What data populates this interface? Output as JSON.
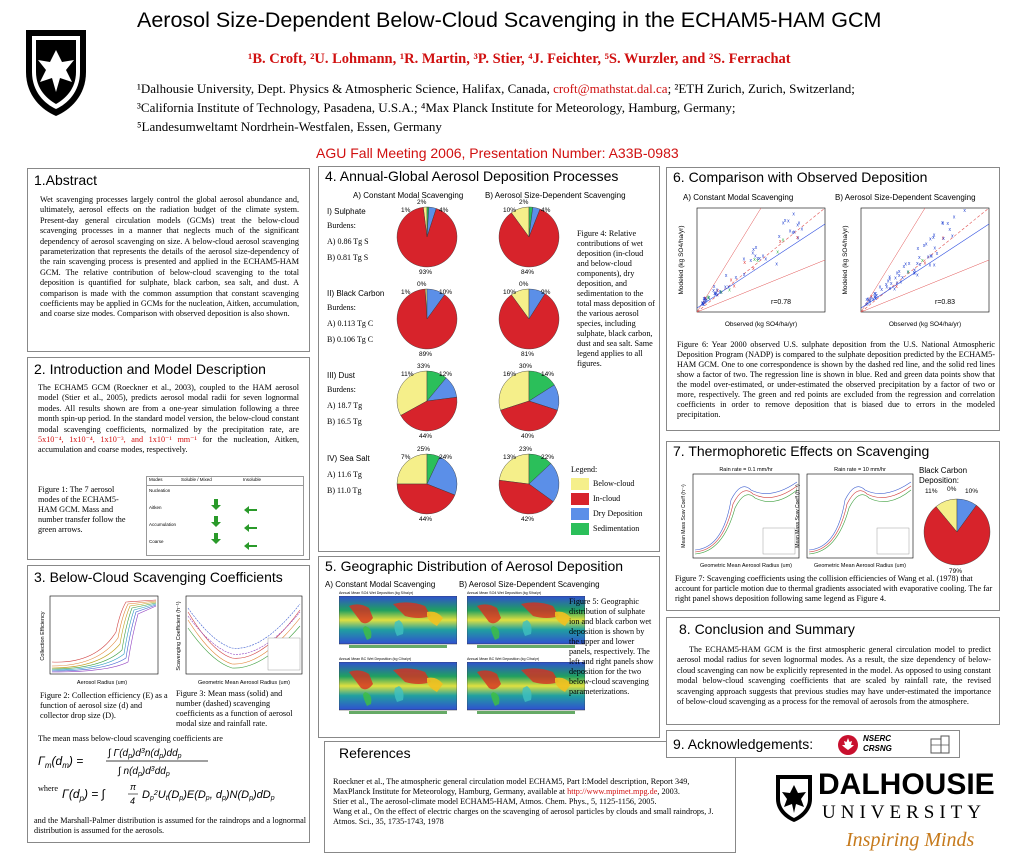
{
  "header": {
    "title": "Aerosol Size-Dependent Below-Cloud Scavenging in the ECHAM5-HAM GCM",
    "authors": "¹B. Croft, ²U. Lohmann, ¹R. Martin, ³P. Stier, ⁴J. Feichter, ⁵S. Wurzler, and ²S. Ferrachat",
    "affil1_pre": "¹Dalhousie University, Dept. Physics & Atmospheric Science, Halifax, Canada,",
    "affil1_email": "croft@mathstat.dal.ca",
    "affil1_post": "; ²ETH Zurich, Zurich, Switzerland;",
    "affil2": "³California Institute of Technology, Pasadena, U.S.A.; ⁴Max Planck Institute for Meteorology, Hamburg, Germany;",
    "affil3": "⁵Landesumweltamt Nordrhein-Westfalen, Essen, Germany",
    "meeting": "AGU Fall Meeting 2006, Presentation Number: A33B-0983"
  },
  "abstract": {
    "title": "1.Abstract",
    "text": "Wet scavenging processes largely control the global aerosol abundance and, ultimately, aerosol effects on the radiation budget of the climate system. Present-day general circulation models (GCMs) treat the below-cloud scavenging processes in a manner that neglects much of the significant dependency of aerosol scavenging on size. A below-cloud aerosol scavenging parameterization that represents the details of the aerosol size-dependency of the rain scavenging process is presented and applied in the ECHAM5-HAM GCM. The relative contribution of below-cloud scavenging to the total deposition is quantified for sulphate, black carbon, sea salt, and dust. A comparison is made with the common assumption that constant scavenging coefficients may be applied in GCMs for the nucleation, Aitken, accumulation, and coarse size modes. Comparison with observed deposition is also shown."
  },
  "intro": {
    "title": "2. Introduction and Model Description",
    "text_a": "The ECHAM5 GCM (Roeckner et al., 2003), coupled to the HAM aerosol model (Stier et al., 2005), predicts aerosol modal radii for seven lognormal modes. All results shown are from a one-year simulation following a three month spin-up period. In the standard model version, the below-cloud constant modal scavenging coefficients, normalized by the precipitation rate, are",
    "text_red": "5x10⁻⁴, 1x10⁻⁴, 1x10⁻³, and 1x10⁻¹ mm⁻¹",
    "text_b": "for the nucleation, Aitken, accumulation and coarse modes, respectively.",
    "fig1_caption_bold": "Figure 1:",
    "fig1_caption": "The 7 aerosol modes of the ECHAM5-HAM GCM. Mass and number transfer follow the green arrows.",
    "table_headers": [
      "Modes",
      "Soluble / Mixed",
      "Insoluble"
    ],
    "table_rows": [
      "Nucleation",
      "Aitken",
      "Accumulation",
      "Coarse"
    ]
  },
  "scav": {
    "title": "3. Below-Cloud Scavenging Coefficients",
    "fig2_bold": "Figure 2:",
    "fig2": "Collection efficiency (E) as a function of aerosol size (d) and collector drop size (D).",
    "fig3_bold": "Figure 3:",
    "fig3": "Mean mass (solid) and number (dashed) scavenging coefficients as a function of aerosol modal size and rainfall rate.",
    "eq_intro": "The mean mass below-cloud scavenging coefficients are",
    "where": "where",
    "closing": "and the Marshall-Palmer distribution is assumed for the raindrops and a lognormal distribution is assumed for the aerosols.",
    "fig2_xlabel": "Aerosol Radius (um)",
    "fig2_ylabel": "Collection Efficiency",
    "fig3_xlabel": "Geometric Mean Aerosol Radius (um)",
    "fig3_ylabel": "Scavenging Coefficient (h⁻¹)"
  },
  "annual": {
    "title": "4. Annual-Global Aerosol Deposition Processes",
    "colA": "A) Constant Modal Scavenging",
    "colB": "B) Aerosol Size-Dependent Scavenging",
    "species": [
      {
        "name": "I) Sulphate",
        "burden_label": "Burdens:",
        "a": "A) 0.86 Tg S",
        "b": "B) 0.81 Tg S"
      },
      {
        "name": "II) Black Carbon",
        "burden_label": "Burdens:",
        "a": "A) 0.113 Tg C",
        "b": "B) 0.106 Tg C"
      },
      {
        "name": "III) Dust",
        "burden_label": "Burdens:",
        "a": "A) 18.7 Tg",
        "b": "B) 16.5 Tg"
      },
      {
        "name": "IV) Sea Salt",
        "burden_label": "",
        "a": "A) 11.6 Tg",
        "b": "B) 11.0 Tg"
      }
    ],
    "pies": [
      {
        "A": [
          2,
          93,
          4,
          1
        ],
        "B": [
          10,
          84,
          4,
          2
        ]
      },
      {
        "A": [
          1,
          89,
          10,
          0
        ],
        "B": [
          10,
          81,
          9,
          0
        ]
      },
      {
        "A": [
          33,
          44,
          12,
          11
        ],
        "B": [
          30,
          40,
          14,
          16
        ]
      },
      {
        "A": [
          25,
          44,
          24,
          7
        ],
        "B": [
          23,
          42,
          22,
          13
        ]
      }
    ],
    "pie_labels": [
      {
        "A": [
          "2%",
          "93%",
          "4%",
          "1%"
        ],
        "B": [
          "2%",
          "84%",
          "4%",
          "10%"
        ]
      },
      {
        "A": [
          "0%",
          "89%",
          "10%",
          "1%"
        ],
        "B": [
          "0%",
          "81%",
          "9%",
          "10%"
        ]
      },
      {
        "A": [
          "33%",
          "44%",
          "12%",
          "11%"
        ],
        "B": [
          "30%",
          "40%",
          "14%",
          "16%"
        ]
      },
      {
        "A": [
          "25%",
          "44%",
          "24%",
          "7%"
        ],
        "B": [
          "23%",
          "42%",
          "22%",
          "13%"
        ]
      }
    ],
    "fig4_bold": "Figure 4:",
    "fig4": "Relative contributions of wet deposition (in-cloud and below-cloud components), dry deposition, and sedimentation to the total mass deposition of the various aerosol species, including sulphate, black carbon, dust and sea salt. Same legend applies to all figures.",
    "legend_title": "Legend:",
    "legend": [
      {
        "label": "Below-cloud",
        "color": "#f5ef8a"
      },
      {
        "label": "In-cloud",
        "color": "#d7232b"
      },
      {
        "label": "Dry Deposition",
        "color": "#5b8fe8"
      },
      {
        "label": "Sedimentation",
        "color": "#2bbf5a"
      }
    ]
  },
  "geo": {
    "title": "5. Geographic Distribution of Aerosol Deposition",
    "colA": "A) Constant Modal Scavenging",
    "colB": "B) Aerosol Size-Dependent Scavenging",
    "map_titles": [
      "Annual Mean SO4 Wet Deposition (kg S/ha/yr)",
      "Annual Mean SO4 Wet Deposition (kg S/ha/yr)",
      "Annual Mean BC Wet Deposition (kg C/ha/yr)",
      "Annual Mean BC Wet Deposition (kg C/ha/yr)"
    ],
    "fig5_bold": "Figure 5:",
    "fig5": "Geographic distribution of sulphate ion and black carbon wet deposition is shown by the upper and lower panels, respectively. The left and right panels show deposition for the two below-cloud scavenging parameterizations."
  },
  "comparison": {
    "title": "6. Comparison with Observed Deposition",
    "colA": "A)  Constant Modal Scavenging",
    "colB": "B)  Aerosol Size-Dependent Scavenging",
    "rA": "r=0.78",
    "rB": "r=0.83",
    "xlabel": "Observed (kg SO4/ha/yr)",
    "ylabel": "Modeled (kg SO4/ha/yr)",
    "fig6_bold": "Figure 6:",
    "fig6": "Year 2000 observed U.S. sulphate deposition from the U.S. National Atmospheric Deposition Program (NADP) is compared to the sulphate deposition predicted by the ECHAM5-HAM GCM. One to one correspondence is shown by the dashed red line, and the solid red lines show a factor of two. The regression line is shown in blue. Red and green data points show that the model over-estimated, or under-estimated the observed precipitation by a factor of two or more, respectively. The green and red points are excluded from the regression and correlation coefficients in order to remove deposition that is biased due to errors in the modeled precipitation."
  },
  "thermo": {
    "title": "7. Thermophoretic Effects on Scavenging",
    "plot1_title": "Rain rate = 0.1 mm/hr",
    "plot2_title": "Rain rate = 10 mm/hr",
    "xlabel": "Geometric Mean Aerosol Radius (um)",
    "ylabel": "Mean Mass Scav Coeff (h⁻¹)",
    "bc_title": "Black Carbon Deposition:",
    "bc_pie": [
      11,
      79,
      10,
      0
    ],
    "bc_labels": [
      "11%",
      "0%",
      "10%",
      "79%"
    ],
    "fig7_bold": "Figure 7:",
    "fig7": "Scavenging coefficients using the collision efficiencies of Wang et al. (1978) that account for particle motion due to thermal gradients associated with evaporative cooling. The far right panel shows deposition following same legend as Figure 4."
  },
  "conclusion": {
    "title": "8. Conclusion and Summary",
    "text": "The ECHAM5-HAM GCM is the first atmospheric general circulation model to predict aerosol modal radius for seven lognormal modes. As a result, the size dependency of below-cloud scavenging can now be explicitly represented in the model. As opposed to using constant modal below-cloud scavenging coefficients that are scaled by rainfall rate, the revised scavenging approach suggests that previous studies may have under-estimated the importance of  below-cloud scavenging as a process for the removal of aerosols from the atmosphere."
  },
  "ack": {
    "title": "9. Acknowledgements:",
    "nserc1": "NSERC",
    "nserc2": "CRSNG"
  },
  "refs": {
    "title": "References",
    "r1a": "Roeckner et al., The atmospheric general circulation model ECHAM5, Part I:Model description, Report 349, MaxPlanck Institute for Meteorology, Hamburg, Germany, available at",
    "r1link": "http://www.mpimet.mpg.de",
    "r1b": ", 2003.",
    "r2": "Stier et al., The aerosol-climate model ECHAM5-HAM, Atmos. Chem. Phys., 5, 1125-1156, 2005.",
    "r3": "Wang et al., On the effect of electric charges on the scavenging of aerosol particles by clouds and small raindrops, J. Atmos. Sci., 35, 1735-1743, 1978"
  },
  "logo": {
    "line1": "DALHOUSIE",
    "line2": "UNIVERSITY",
    "tagline": "Inspiring Minds"
  }
}
